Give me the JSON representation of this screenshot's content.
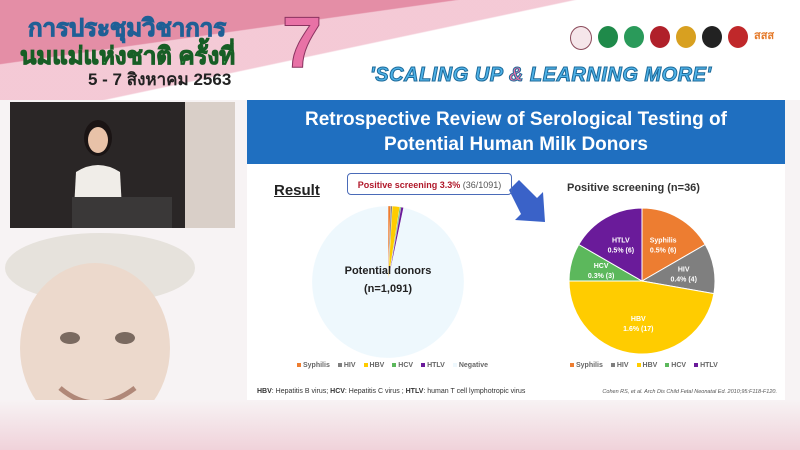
{
  "banner": {
    "thai_title_line1": "การประชุมวิชาการ",
    "thai_title_line2": "นมแม่แห่งชาติ ครั้งที่",
    "date": "5 - 7 สิงหาคม 2563",
    "edition_number": "7",
    "slogan_part1": "'SCALING UP ",
    "slogan_amp": "&",
    "slogan_part2": " LEARNING MORE'",
    "logo_text": "สสส"
  },
  "slide": {
    "title_line1": "Retrospective Review of Serological Testing of",
    "title_line2": "Potential Human Milk Donors",
    "result_heading": "Result",
    "callout_bold": "Positive screening 3.3%",
    "callout_rest": " (36/1091)",
    "footnote": {
      "hbv_abbr": "HBV",
      "hbv_text": ": Hepatitis B virus; ",
      "hcv_abbr": "HCV",
      "hcv_text": ": Hepatitis C virus ; ",
      "htlv_abbr": "HTLV",
      "htlv_text": ": human T cell lymphotropic virus"
    },
    "citation": "Cohen RS, et al. Arch Dis Child Fetal Neonatal Ed. 2010;95:F118-F120."
  },
  "colors": {
    "Syphilis": "#ed7d31",
    "HIV": "#7f7f7f",
    "HBV": "#ffcc00",
    "HCV": "#5cb85c",
    "HTLV": "#6a1b9a",
    "Negative": "#eef8fd",
    "title_bar": "#1f6fc0"
  },
  "chart_data": [
    {
      "type": "pie",
      "title": "",
      "center_label_line1": "Potential donors",
      "center_label_line2": "(n=1,091)",
      "categories": [
        "Syphilis",
        "HIV",
        "HBV",
        "HCV",
        "HTLV",
        "Negative"
      ],
      "values": [
        6,
        4,
        17,
        3,
        6,
        1055
      ],
      "legend": [
        "Syphilis",
        "HIV",
        "HBV",
        "HCV",
        "HTLV",
        "Negative"
      ],
      "legend_placement": "bottom"
    },
    {
      "type": "pie",
      "title": "Positive screening (n=36)",
      "categories": [
        "Syphilis",
        "HIV",
        "HBV",
        "HCV",
        "HTLV"
      ],
      "values": [
        6,
        4,
        17,
        3,
        6
      ],
      "data_labels": [
        {
          "name": "Syphilis",
          "text": "0.5% (6)"
        },
        {
          "name": "HIV",
          "text": "0.4% (4)"
        },
        {
          "name": "HBV",
          "text": "1.6% (17)"
        },
        {
          "name": "HCV",
          "text": "0.3% (3)"
        },
        {
          "name": "HTLV",
          "text": "0.5% (6)"
        }
      ],
      "legend": [
        "Syphilis",
        "HIV",
        "HBV",
        "HCV",
        "HTLV"
      ],
      "legend_placement": "bottom"
    }
  ]
}
